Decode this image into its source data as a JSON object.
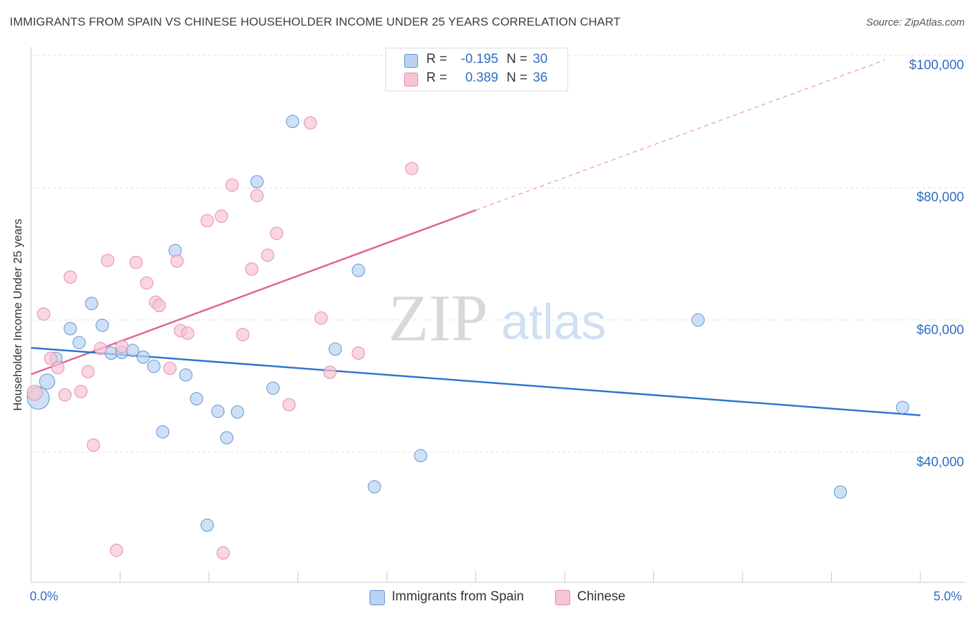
{
  "title": "IMMIGRANTS FROM SPAIN VS CHINESE HOUSEHOLDER INCOME UNDER 25 YEARS CORRELATION CHART",
  "source": "Source: ZipAtlas.com",
  "watermark": {
    "zip": "ZIP",
    "atlas": "atlas"
  },
  "legend": {
    "r_label": "R =",
    "n_label": "N =",
    "spain": {
      "r": "-0.195",
      "n": "30"
    },
    "chinese": {
      "r": "0.389",
      "n": "36"
    }
  },
  "bottom_legend": {
    "spain": "Immigrants from Spain",
    "chinese": "Chinese"
  },
  "colors": {
    "spain_fill": "#b9d3f1",
    "spain_stroke": "#5e93d6",
    "spain_line": "#2f74cf",
    "chinese_fill": "#f7c4d4",
    "chinese_stroke": "#e58aa8",
    "chinese_line": "#e0648e",
    "tick_text": "#2f6cc4",
    "grid": "#e0e0e0"
  },
  "chart_data": {
    "type": "scatter",
    "xlabel": "",
    "ylabel": "Householder Income Under 25 years",
    "xlim": [
      0.0,
      5.0
    ],
    "ylim": [
      20000,
      104000
    ],
    "x_tick_labels": {
      "min": "0.0%",
      "max": "5.0%"
    },
    "y_ticks": [
      {
        "value": 40000,
        "label": "$40,000"
      },
      {
        "value": 60000,
        "label": "$60,000"
      },
      {
        "value": 80000,
        "label": "$80,000"
      },
      {
        "value": 100000,
        "label": "$100,000"
      }
    ],
    "series": [
      {
        "name": "Immigrants from Spain",
        "points": [
          {
            "x": 0.04,
            "y": 48200,
            "size": 16
          },
          {
            "x": 0.09,
            "y": 50700,
            "size": 11
          },
          {
            "x": 0.14,
            "y": 54200,
            "size": 9
          },
          {
            "x": 0.22,
            "y": 58700,
            "size": 9
          },
          {
            "x": 0.27,
            "y": 56600,
            "size": 9
          },
          {
            "x": 0.34,
            "y": 62500,
            "size": 9
          },
          {
            "x": 0.4,
            "y": 59200,
            "size": 9
          },
          {
            "x": 0.45,
            "y": 55000,
            "size": 9
          },
          {
            "x": 0.51,
            "y": 55100,
            "size": 9
          },
          {
            "x": 0.57,
            "y": 55400,
            "size": 9
          },
          {
            "x": 0.63,
            "y": 54400,
            "size": 9
          },
          {
            "x": 0.69,
            "y": 53000,
            "size": 9
          },
          {
            "x": 0.74,
            "y": 43100,
            "size": 9
          },
          {
            "x": 0.81,
            "y": 70500,
            "size": 9
          },
          {
            "x": 0.87,
            "y": 51700,
            "size": 9
          },
          {
            "x": 0.93,
            "y": 48100,
            "size": 9
          },
          {
            "x": 0.99,
            "y": 29000,
            "size": 9
          },
          {
            "x": 1.05,
            "y": 46200,
            "size": 9
          },
          {
            "x": 1.1,
            "y": 42200,
            "size": 9
          },
          {
            "x": 1.16,
            "y": 46100,
            "size": 9
          },
          {
            "x": 1.27,
            "y": 80900,
            "size": 9
          },
          {
            "x": 1.36,
            "y": 49700,
            "size": 9
          },
          {
            "x": 1.47,
            "y": 90000,
            "size": 9
          },
          {
            "x": 1.71,
            "y": 55600,
            "size": 9
          },
          {
            "x": 1.84,
            "y": 67500,
            "size": 9
          },
          {
            "x": 1.93,
            "y": 34800,
            "size": 9
          },
          {
            "x": 2.19,
            "y": 39500,
            "size": 9
          },
          {
            "x": 3.75,
            "y": 60000,
            "size": 9
          },
          {
            "x": 4.55,
            "y": 34000,
            "size": 9
          },
          {
            "x": 4.9,
            "y": 46800,
            "size": 9
          }
        ],
        "trend": {
          "x1": 0.0,
          "y1": 55800,
          "x2": 5.0,
          "y2": 45600,
          "dashed_extension": false
        }
      },
      {
        "name": "Chinese",
        "points": [
          {
            "x": 0.02,
            "y": 49000,
            "size": 11
          },
          {
            "x": 0.07,
            "y": 60900,
            "size": 9
          },
          {
            "x": 0.11,
            "y": 54200,
            "size": 9
          },
          {
            "x": 0.15,
            "y": 52800,
            "size": 9
          },
          {
            "x": 0.19,
            "y": 48700,
            "size": 9
          },
          {
            "x": 0.22,
            "y": 66500,
            "size": 9
          },
          {
            "x": 0.28,
            "y": 49200,
            "size": 9
          },
          {
            "x": 0.32,
            "y": 52200,
            "size": 9
          },
          {
            "x": 0.35,
            "y": 41100,
            "size": 9
          },
          {
            "x": 0.39,
            "y": 55700,
            "size": 9
          },
          {
            "x": 0.43,
            "y": 69000,
            "size": 9
          },
          {
            "x": 0.48,
            "y": 25200,
            "size": 9
          },
          {
            "x": 0.51,
            "y": 56000,
            "size": 9
          },
          {
            "x": 0.59,
            "y": 68700,
            "size": 9
          },
          {
            "x": 0.65,
            "y": 65600,
            "size": 9
          },
          {
            "x": 0.7,
            "y": 62700,
            "size": 9
          },
          {
            "x": 0.72,
            "y": 62200,
            "size": 9
          },
          {
            "x": 0.78,
            "y": 52700,
            "size": 9
          },
          {
            "x": 0.82,
            "y": 68900,
            "size": 9
          },
          {
            "x": 0.84,
            "y": 58400,
            "size": 9
          },
          {
            "x": 0.88,
            "y": 58000,
            "size": 9
          },
          {
            "x": 0.99,
            "y": 75000,
            "size": 9
          },
          {
            "x": 1.07,
            "y": 75700,
            "size": 9
          },
          {
            "x": 1.08,
            "y": 24800,
            "size": 9
          },
          {
            "x": 1.13,
            "y": 80400,
            "size": 9
          },
          {
            "x": 1.19,
            "y": 57800,
            "size": 9
          },
          {
            "x": 1.24,
            "y": 67700,
            "size": 9
          },
          {
            "x": 1.27,
            "y": 78800,
            "size": 9
          },
          {
            "x": 1.33,
            "y": 69800,
            "size": 9
          },
          {
            "x": 1.38,
            "y": 73100,
            "size": 9
          },
          {
            "x": 1.45,
            "y": 47200,
            "size": 9
          },
          {
            "x": 1.57,
            "y": 89800,
            "size": 9
          },
          {
            "x": 1.63,
            "y": 60300,
            "size": 9
          },
          {
            "x": 1.68,
            "y": 52100,
            "size": 9
          },
          {
            "x": 1.84,
            "y": 55000,
            "size": 9
          },
          {
            "x": 2.14,
            "y": 82900,
            "size": 9
          }
        ],
        "trend": {
          "x1": 0.0,
          "y1": 51800,
          "x2": 2.5,
          "y2": 76600,
          "dashed_x2": 4.8,
          "dashed_y2": 99300
        }
      }
    ]
  }
}
